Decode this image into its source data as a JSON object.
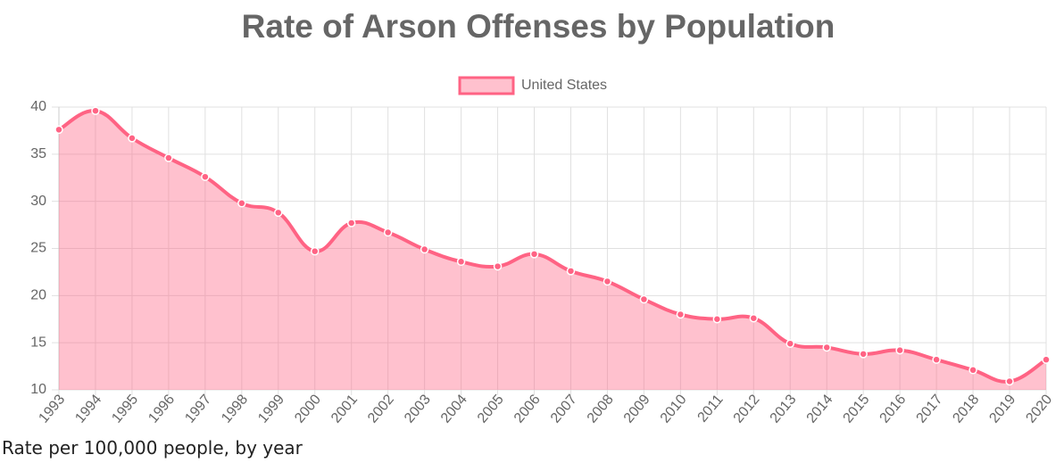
{
  "chart_data": {
    "type": "line",
    "title": "Rate of Arson Offenses by Population",
    "caption": "Rate per 100,000 people, by year",
    "categories": [
      "1993",
      "1994",
      "1995",
      "1996",
      "1997",
      "1998",
      "1999",
      "2000",
      "2001",
      "2002",
      "2003",
      "2004",
      "2005",
      "2006",
      "2007",
      "2008",
      "2009",
      "2010",
      "2011",
      "2012",
      "2013",
      "2014",
      "2015",
      "2016",
      "2017",
      "2018",
      "2019",
      "2020"
    ],
    "series": [
      {
        "name": "United States",
        "color": "#ff6384",
        "values": [
          37.6,
          39.6,
          36.7,
          34.6,
          32.6,
          29.8,
          28.8,
          24.7,
          27.7,
          26.7,
          24.9,
          23.6,
          23.1,
          24.4,
          22.6,
          21.5,
          19.6,
          18.0,
          17.5,
          17.6,
          14.9,
          14.5,
          13.8,
          14.2,
          13.2,
          12.1,
          10.9,
          13.2
        ]
      }
    ],
    "ylim": [
      10,
      40
    ],
    "yticks": [
      10,
      15,
      20,
      25,
      30,
      35,
      40
    ],
    "grid": true,
    "fill": true,
    "legend": "top"
  }
}
